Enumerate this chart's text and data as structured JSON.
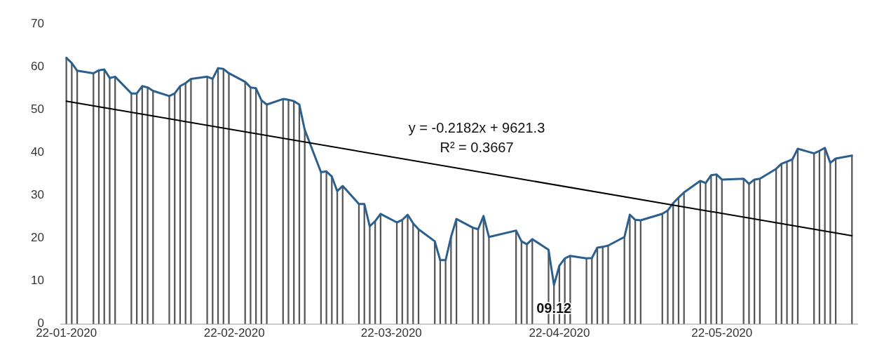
{
  "chart_data": {
    "type": "line",
    "x": [
      "2020-01-22",
      "2020-01-23",
      "2020-01-24",
      "2020-01-27",
      "2020-01-28",
      "2020-01-29",
      "2020-01-30",
      "2020-01-31",
      "2020-02-03",
      "2020-02-04",
      "2020-02-05",
      "2020-02-06",
      "2020-02-07",
      "2020-02-10",
      "2020-02-11",
      "2020-02-12",
      "2020-02-13",
      "2020-02-14",
      "2020-02-17",
      "2020-02-18",
      "2020-02-19",
      "2020-02-20",
      "2020-02-21",
      "2020-02-24",
      "2020-02-25",
      "2020-02-26",
      "2020-02-27",
      "2020-02-28",
      "2020-03-02",
      "2020-03-03",
      "2020-03-04",
      "2020-03-05",
      "2020-03-06",
      "2020-03-09",
      "2020-03-10",
      "2020-03-11",
      "2020-03-12",
      "2020-03-13",
      "2020-03-16",
      "2020-03-17",
      "2020-03-18",
      "2020-03-19",
      "2020-03-20",
      "2020-03-23",
      "2020-03-24",
      "2020-03-25",
      "2020-03-26",
      "2020-03-27",
      "2020-03-30",
      "2020-03-31",
      "2020-04-01",
      "2020-04-02",
      "2020-04-03",
      "2020-04-06",
      "2020-04-07",
      "2020-04-08",
      "2020-04-09",
      "2020-04-14",
      "2020-04-15",
      "2020-04-16",
      "2020-04-17",
      "2020-04-20",
      "2020-04-21",
      "2020-04-22",
      "2020-04-23",
      "2020-04-24",
      "2020-04-27",
      "2020-04-28",
      "2020-04-29",
      "2020-04-30",
      "2020-05-01",
      "2020-05-04",
      "2020-05-05",
      "2020-05-06",
      "2020-05-07",
      "2020-05-11",
      "2020-05-12",
      "2020-05-13",
      "2020-05-14",
      "2020-05-15",
      "2020-05-18",
      "2020-05-19",
      "2020-05-20",
      "2020-05-21",
      "2020-05-22",
      "2020-05-26",
      "2020-05-27",
      "2020-05-28",
      "2020-05-29",
      "2020-06-01",
      "2020-06-02",
      "2020-06-03",
      "2020-06-04",
      "2020-06-05",
      "2020-06-08",
      "2020-06-09",
      "2020-06-10",
      "2020-06-11",
      "2020-06-12",
      "2020-06-15"
    ],
    "series": [
      {
        "type": "bar",
        "color": "#555555",
        "values": [
          62.1,
          60.9,
          59.1,
          58.5,
          59.2,
          59.4,
          57.4,
          57.7,
          53.8,
          53.8,
          55.5,
          55.2,
          54.4,
          53.2,
          53.8,
          55.5,
          56.2,
          57.2,
          57.7,
          57.2,
          59.7,
          59.5,
          58.5,
          56.5,
          55.2,
          55.0,
          52.2,
          51.2,
          52.5,
          52.3,
          52.0,
          51.2,
          45.3,
          35.4,
          35.6,
          34.4,
          31.0,
          32.2,
          28.0,
          28.0,
          22.8,
          24.0,
          25.7,
          23.7,
          24.3,
          25.5,
          23.5,
          22.1,
          19.3,
          14.9,
          14.9,
          20.3,
          24.5,
          22.5,
          22.1,
          25.2,
          20.3,
          21.8,
          19.3,
          18.6,
          19.8,
          17.3,
          9.12,
          13.6,
          15.3,
          15.9,
          15.3,
          15.4,
          17.8,
          18.0,
          18.3,
          20.3,
          25.5,
          24.3,
          24.2,
          25.7,
          26.5,
          28.2,
          29.5,
          30.7,
          33.4,
          32.9,
          34.7,
          34.9,
          33.7,
          33.9,
          32.7,
          33.7,
          33.9,
          36.2,
          37.4,
          37.9,
          38.4,
          40.9,
          39.8,
          40.4,
          41.1,
          37.6,
          38.6,
          39.3
        ]
      },
      {
        "color": "#2b5f8e",
        "values": [
          62.1,
          60.9,
          59.1,
          58.5,
          59.2,
          59.4,
          57.4,
          57.7,
          53.8,
          53.8,
          55.5,
          55.2,
          54.4,
          53.2,
          53.8,
          55.5,
          56.2,
          57.2,
          57.7,
          57.2,
          59.7,
          59.5,
          58.5,
          56.5,
          55.2,
          55.0,
          52.2,
          51.2,
          52.5,
          52.3,
          52.0,
          51.2,
          45.3,
          35.4,
          35.6,
          34.4,
          31.0,
          32.2,
          28.0,
          28.0,
          22.8,
          24.0,
          25.7,
          23.7,
          24.3,
          25.5,
          23.5,
          22.1,
          19.3,
          14.9,
          14.9,
          20.3,
          24.5,
          22.5,
          22.1,
          25.2,
          20.3,
          21.8,
          19.3,
          18.6,
          19.8,
          17.3,
          9.12,
          13.6,
          15.3,
          15.9,
          15.3,
          15.4,
          17.8,
          18.0,
          18.3,
          20.3,
          25.5,
          24.3,
          24.2,
          25.7,
          26.5,
          28.2,
          29.5,
          30.7,
          33.4,
          32.9,
          34.7,
          34.9,
          33.7,
          33.9,
          32.7,
          33.7,
          33.9,
          36.2,
          37.4,
          37.9,
          38.4,
          40.9,
          39.8,
          40.4,
          41.1,
          37.6,
          38.6,
          39.3
        ]
      },
      {
        "type": "line",
        "color": "#000000",
        "x": [
          "2020-01-22",
          "2020-06-15"
        ],
        "values": [
          52.0,
          20.6
        ]
      }
    ],
    "xlim": [
      "2020-01-21",
      "2020-06-16"
    ],
    "xticks": [
      {
        "value": "2020-01-22",
        "label": "22-01-2020"
      },
      {
        "value": "2020-02-22",
        "label": "22-02-2020"
      },
      {
        "value": "2020-03-22",
        "label": "22-03-2020"
      },
      {
        "value": "2020-04-22",
        "label": "22-04-2020"
      },
      {
        "value": "2020-05-22",
        "label": "22-05-2020"
      }
    ],
    "ylim": [
      0,
      70
    ],
    "yticks": [
      0,
      10,
      20,
      30,
      40,
      50,
      60,
      70
    ],
    "annotations": [
      "y = -0.2182x + 9621.3",
      "R² = 0.3667",
      {
        "text": "09.12",
        "x": "2020-04-21",
        "y": 9.12
      }
    ],
    "grid": false,
    "legend": false,
    "marker": "none"
  }
}
